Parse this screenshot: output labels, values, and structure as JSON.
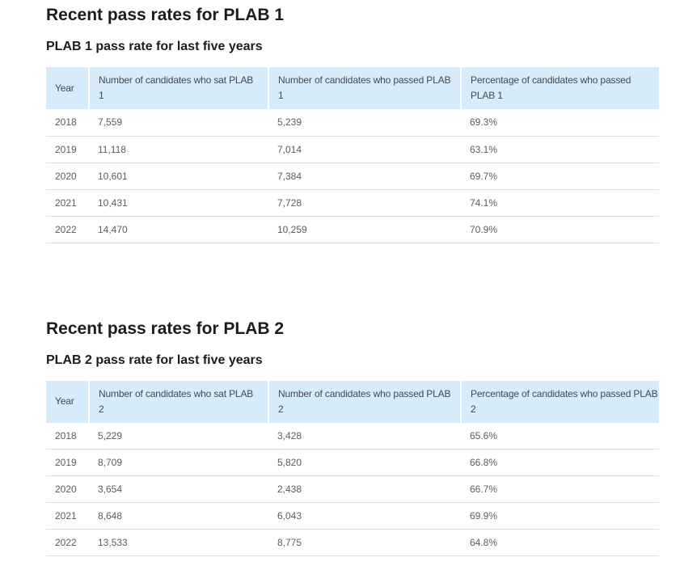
{
  "colors": {
    "header_bg": "#d6ecfa",
    "title_color": "#1c1c1c",
    "header_text": "#44484c",
    "cell_text": "#595d60",
    "row_border": "#dadcdd",
    "page_bg": "#ffffff"
  },
  "sections": [
    {
      "title": "Recent pass rates for PLAB 1",
      "subtitle": "PLAB 1 pass rate for last five years",
      "columns": [
        {
          "line1": "Year",
          "line2": ""
        },
        {
          "line1": "Number of candidates who sat PLAB",
          "line2": "1"
        },
        {
          "line1": "Number of candidates who passed PLAB",
          "line2": "1"
        },
        {
          "line1": "Percentage of candidates who passed",
          "line2": "PLAB 1"
        }
      ],
      "rows": [
        [
          "2018",
          "7,559",
          "5,239",
          "69.3%"
        ],
        [
          "2019",
          "11,118",
          "7,014",
          "63.1%"
        ],
        [
          "2020",
          "10,601",
          "7,384",
          "69.7%"
        ],
        [
          "2021",
          "10,431",
          "7,728",
          "74.1%"
        ],
        [
          "2022",
          "14,470",
          "10,259",
          "70.9%"
        ]
      ]
    },
    {
      "title": "Recent pass rates for PLAB 2",
      "subtitle": "PLAB 2 pass rate for last five years",
      "columns": [
        {
          "line1": "Year",
          "line2": ""
        },
        {
          "line1": "Number of candidates who sat PLAB",
          "line2": "2"
        },
        {
          "line1": "Number of candidates who passed PLAB",
          "line2": "2"
        },
        {
          "line1": "Percentage of candidates who passed PLAB",
          "line2": "2"
        }
      ],
      "rows": [
        [
          "2018",
          "5,229",
          "3,428",
          "65.6%"
        ],
        [
          "2019",
          "8,709",
          "5,820",
          "66.8%"
        ],
        [
          "2020",
          "3,654",
          "2,438",
          "66.7%"
        ],
        [
          "2021",
          "8,648",
          "6,043",
          "69.9%"
        ],
        [
          "2022",
          "13,533",
          "8,775",
          "64.8%"
        ]
      ]
    }
  ]
}
